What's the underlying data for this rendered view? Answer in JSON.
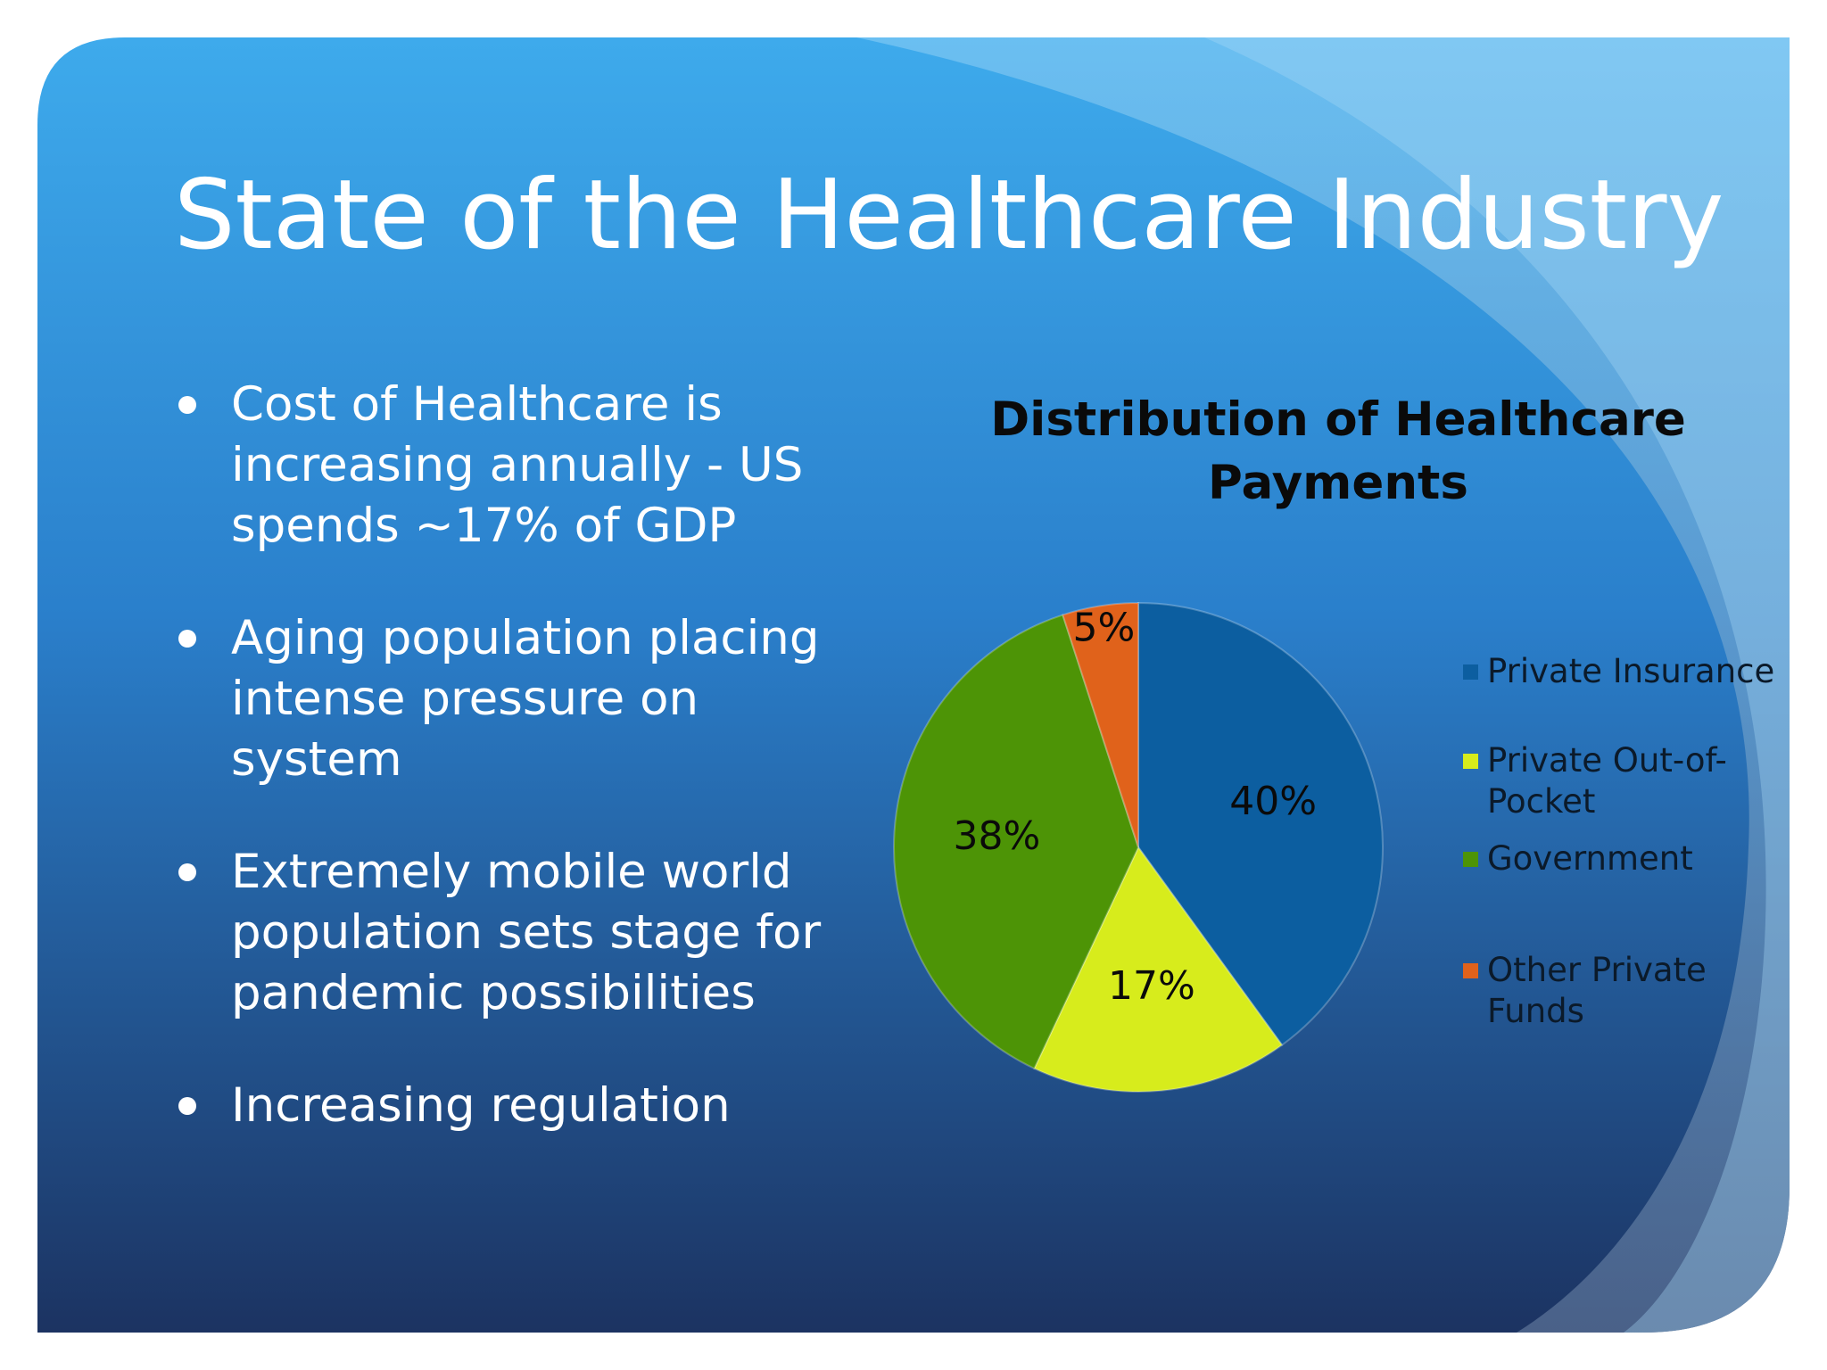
{
  "slide": {
    "title": "State of the Healthcare Industry",
    "bullets": [
      {
        "text": "Cost of Healthcare is increasing annually - US spends ~17% of GDP"
      },
      {
        "text": "Aging population placing intense pressure on system"
      },
      {
        "text": "Extremely mobile world population sets stage for pandemic possibilities"
      },
      {
        "text": "Increasing regulation"
      }
    ],
    "colors": {
      "background_top": "#3da9ea",
      "background_bottom": "#1b3463",
      "title": "#ffffff",
      "bullet_text": "#ffffff"
    }
  },
  "chart_data": {
    "type": "pie",
    "title": "Distribution of Healthcare Payments",
    "categories": [
      "Private Insurance",
      "Private Out-of-Pocket",
      "Government",
      "Other Private Funds"
    ],
    "values": [
      40,
      17,
      38,
      5
    ],
    "data_labels": [
      "40%",
      "17%",
      "38%",
      "5%"
    ],
    "colors": [
      "#0c5ea0",
      "#d7ec1c",
      "#4d9406",
      "#e0621b"
    ],
    "legend_placement": "right",
    "grid": false
  }
}
